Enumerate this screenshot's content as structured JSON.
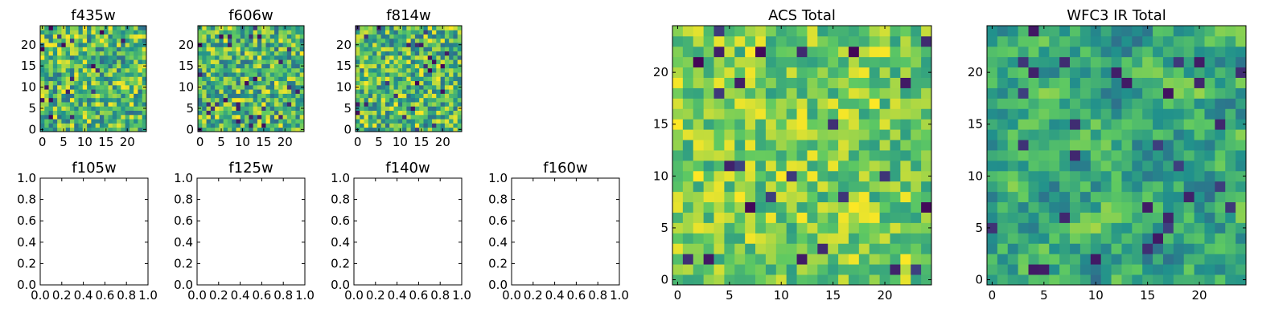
{
  "chart_data": [
    {
      "type": "heatmap",
      "title": "f435w",
      "grid": [
        25,
        25
      ],
      "xticks": [
        "0",
        "5",
        "10",
        "15",
        "20"
      ],
      "yticks": [
        "0",
        "5",
        "10",
        "15",
        "20"
      ],
      "xlim": [
        -0.5,
        24.5
      ],
      "ylim": [
        -0.5,
        24.5
      ],
      "pattern": "noise-fine",
      "seed": 11
    },
    {
      "type": "heatmap",
      "title": "f606w",
      "grid": [
        25,
        25
      ],
      "xticks": [
        "0",
        "5",
        "10",
        "15",
        "20"
      ],
      "yticks": [
        "0",
        "5",
        "10",
        "15",
        "20"
      ],
      "xlim": [
        -0.5,
        24.5
      ],
      "ylim": [
        -0.5,
        24.5
      ],
      "pattern": "noise-fine",
      "seed": 23
    },
    {
      "type": "heatmap",
      "title": "f814w",
      "grid": [
        25,
        25
      ],
      "xticks": [
        "0",
        "5",
        "10",
        "15",
        "20"
      ],
      "yticks": [
        "0",
        "5",
        "10",
        "15",
        "20"
      ],
      "xlim": [
        -0.5,
        24.5
      ],
      "ylim": [
        -0.5,
        24.5
      ],
      "pattern": "noise-fine",
      "seed": 37
    },
    {
      "type": "empty",
      "title": "f105w",
      "xticks": [
        "0.0",
        "0.2",
        "0.4",
        "0.6",
        "0.8",
        "1.0"
      ],
      "yticks": [
        "0.0",
        "0.2",
        "0.4",
        "0.6",
        "0.8",
        "1.0"
      ],
      "xlim": [
        0,
        1
      ],
      "ylim": [
        0,
        1
      ]
    },
    {
      "type": "empty",
      "title": "f125w",
      "xticks": [
        "0.0",
        "0.2",
        "0.4",
        "0.6",
        "0.8",
        "1.0"
      ],
      "yticks": [
        "0.0",
        "0.2",
        "0.4",
        "0.6",
        "0.8",
        "1.0"
      ],
      "xlim": [
        0,
        1
      ],
      "ylim": [
        0,
        1
      ]
    },
    {
      "type": "empty",
      "title": "f140w",
      "xticks": [
        "0.0",
        "0.2",
        "0.4",
        "0.6",
        "0.8",
        "1.0"
      ],
      "yticks": [
        "0.0",
        "0.2",
        "0.4",
        "0.6",
        "0.8",
        "1.0"
      ],
      "xlim": [
        0,
        1
      ],
      "ylim": [
        0,
        1
      ]
    },
    {
      "type": "empty",
      "title": "f160w",
      "xticks": [
        "0.0",
        "0.2",
        "0.4",
        "0.6",
        "0.8",
        "1.0"
      ],
      "yticks": [
        "0.0",
        "0.2",
        "0.4",
        "0.6",
        "0.8",
        "1.0"
      ],
      "xlim": [
        0,
        1
      ],
      "ylim": [
        0,
        1
      ]
    },
    {
      "type": "heatmap",
      "title": "ACS Total",
      "grid": [
        25,
        25
      ],
      "xticks": [
        "0",
        "5",
        "10",
        "15",
        "20"
      ],
      "yticks": [
        "0",
        "5",
        "10",
        "15",
        "20"
      ],
      "xlim": [
        -0.5,
        24.5
      ],
      "ylim": [
        -0.5,
        24.5
      ],
      "pattern": "noise-bright",
      "seed": 53
    },
    {
      "type": "heatmap",
      "title": "WFC3 IR Total",
      "grid": [
        25,
        25
      ],
      "xticks": [
        "0",
        "5",
        "10",
        "15",
        "20"
      ],
      "yticks": [
        "0",
        "5",
        "10",
        "15",
        "20"
      ],
      "xlim": [
        -0.5,
        24.5
      ],
      "ylim": [
        -0.5,
        24.5
      ],
      "pattern": "noise-smooth",
      "seed": 71
    }
  ]
}
